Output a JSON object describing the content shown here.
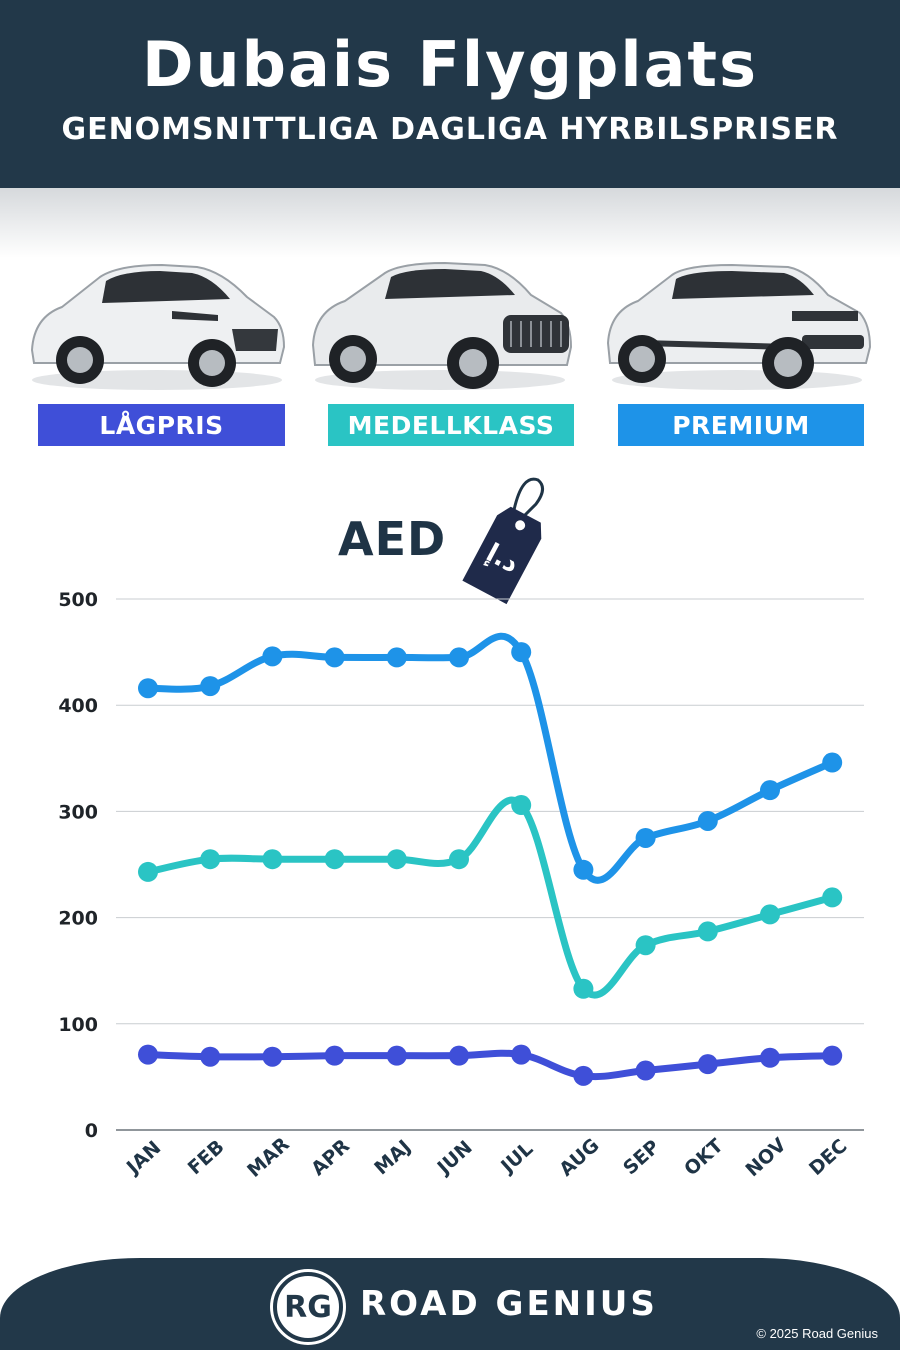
{
  "header": {
    "title": "Dubais Flygplats",
    "subtitle": "GENOMSNITTLIGA DAGLIGA HYRBILSPRISER"
  },
  "categories": [
    {
      "label": "LÅGPRIS",
      "color": "#3f4fd8"
    },
    {
      "label": "MEDELLKLASS",
      "color": "#2ac4c4"
    },
    {
      "label": "PREMIUM",
      "color": "#1e93e8"
    }
  ],
  "currency": {
    "label": "AED",
    "tag_symbol": "د.إ"
  },
  "chart_data": {
    "type": "line",
    "title": "",
    "xlabel": "",
    "ylabel": "AED",
    "ylim": [
      0,
      500
    ],
    "yticks": [
      0,
      100,
      200,
      300,
      400,
      500
    ],
    "grid": true,
    "categories": [
      "JAN",
      "FEB",
      "MAR",
      "APR",
      "MAJ",
      "JUN",
      "JUL",
      "AUG",
      "SEP",
      "OKT",
      "NOV",
      "DEC"
    ],
    "series": [
      {
        "name": "PREMIUM",
        "color": "#1e93e8",
        "values": [
          416,
          418,
          446,
          445,
          445,
          445,
          450,
          245,
          275,
          291,
          320,
          346
        ]
      },
      {
        "name": "MEDELLKLASS",
        "color": "#2ac4c4",
        "values": [
          243,
          255,
          255,
          255,
          255,
          255,
          306,
          133,
          174,
          187,
          203,
          219
        ]
      },
      {
        "name": "LÅGPRIS",
        "color": "#3f4fd8",
        "values": [
          71,
          69,
          69,
          70,
          70,
          70,
          71,
          51,
          56,
          62,
          68,
          70
        ]
      }
    ]
  },
  "footer": {
    "logo_text": "RG",
    "brand": "ROAD GENIUS",
    "copyright": "© 2025 Road Genius"
  }
}
